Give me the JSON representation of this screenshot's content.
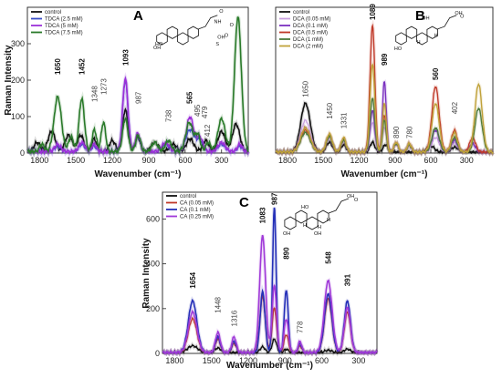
{
  "chart_data": [
    {
      "type": "line",
      "panel": "A",
      "ylabel": "Raman Intensity",
      "xlabel": "Wavenumber (cm⁻¹)",
      "xlim": [
        1900,
        80
      ],
      "x_reversed": true,
      "ylim": [
        0,
        400
      ],
      "yticks": [
        0,
        100,
        200,
        300
      ],
      "xticks": [
        1800,
        1500,
        1200,
        900,
        600,
        300
      ],
      "legend_position": "top-left",
      "grid": false,
      "structure_labels": [
        "OH",
        "HO",
        "NH",
        "OH",
        "O",
        "O",
        "S",
        "O"
      ],
      "peak_labels": [
        {
          "text": "1650",
          "x": 1650,
          "y": 215,
          "bold": true
        },
        {
          "text": "1452",
          "x": 1452,
          "y": 215,
          "bold": true
        },
        {
          "text": "1348",
          "x": 1348,
          "y": 140,
          "bold": false
        },
        {
          "text": "1273",
          "x": 1273,
          "y": 160,
          "bold": false
        },
        {
          "text": "1093",
          "x": 1093,
          "y": 240,
          "bold": true
        },
        {
          "text": "987",
          "x": 987,
          "y": 135,
          "bold": false
        },
        {
          "text": "738",
          "x": 738,
          "y": 85,
          "bold": false
        },
        {
          "text": "565",
          "x": 565,
          "y": 135,
          "bold": true
        },
        {
          "text": "495",
          "x": 500,
          "y": 100,
          "bold": false
        },
        {
          "text": "479",
          "x": 440,
          "y": 95,
          "bold": false
        },
        {
          "text": "412",
          "x": 420,
          "y": 45,
          "bold": false
        }
      ],
      "series": [
        {
          "name": "control",
          "color": "#111111",
          "width": 1.6,
          "peaks": [
            [
              1820,
              25,
              25
            ],
            [
              1700,
              55,
              30
            ],
            [
              1560,
              45,
              30
            ],
            [
              1460,
              45,
              25
            ],
            [
              1350,
              35,
              20
            ],
            [
              1200,
              30,
              25
            ],
            [
              1093,
              115,
              22
            ],
            [
              990,
              40,
              20
            ],
            [
              850,
              25,
              30
            ],
            [
              700,
              20,
              30
            ],
            [
              560,
              35,
              30
            ],
            [
              430,
              30,
              25
            ],
            [
              300,
              55,
              30
            ],
            [
              180,
              75,
              30
            ]
          ]
        },
        {
          "name": "TDCA (2.5 mM)",
          "color": "#3a4fc8",
          "width": 1.4,
          "peaks": [
            [
              1650,
              15,
              25
            ],
            [
              1450,
              20,
              25
            ],
            [
              1350,
              15,
              20
            ],
            [
              1093,
              195,
              22
            ],
            [
              990,
              45,
              20
            ],
            [
              760,
              20,
              30
            ],
            [
              560,
              60,
              35
            ],
            [
              480,
              30,
              25
            ],
            [
              300,
              20,
              30
            ],
            [
              150,
              15,
              20
            ]
          ]
        },
        {
          "name": "TDCA (5 mM)",
          "color": "#9b30d8",
          "width": 1.6,
          "peaks": [
            [
              1650,
              20,
              25
            ],
            [
              1450,
              25,
              25
            ],
            [
              1350,
              20,
              20
            ],
            [
              1093,
              200,
              22
            ],
            [
              990,
              50,
              20
            ],
            [
              760,
              25,
              30
            ],
            [
              560,
              95,
              30
            ],
            [
              480,
              40,
              25
            ],
            [
              300,
              25,
              30
            ],
            [
              150,
              20,
              20
            ]
          ]
        },
        {
          "name": "TDCA (7.5 mM)",
          "color": "#2a7a2a",
          "width": 1.6,
          "peaks": [
            [
              1780,
              20,
              20
            ],
            [
              1650,
              150,
              30
            ],
            [
              1540,
              40,
              20
            ],
            [
              1452,
              145,
              22
            ],
            [
              1348,
              60,
              18
            ],
            [
              1273,
              80,
              18
            ],
            [
              1093,
              90,
              22
            ],
            [
              987,
              45,
              20
            ],
            [
              850,
              25,
              25
            ],
            [
              738,
              30,
              25
            ],
            [
              565,
              80,
              30
            ],
            [
              495,
              45,
              20
            ],
            [
              410,
              25,
              20
            ],
            [
              300,
              90,
              30
            ],
            [
              165,
              370,
              28
            ]
          ]
        }
      ]
    },
    {
      "type": "line",
      "panel": "B",
      "ylabel": "",
      "xlabel": "Wavenumber (cm⁻¹)",
      "xlim": [
        1900,
        80
      ],
      "x_reversed": true,
      "ylim": [
        0,
        600
      ],
      "yticks": [],
      "xticks": [
        1800,
        1500,
        1200,
        900,
        600,
        300
      ],
      "legend_position": "top-left",
      "grid": false,
      "structure_labels": [
        "OH",
        "HO",
        "H",
        "H",
        "OH",
        "O"
      ],
      "peak_labels": [
        {
          "text": "1650",
          "x": 1650,
          "y": 230,
          "bold": false
        },
        {
          "text": "1450",
          "x": 1450,
          "y": 140,
          "bold": false
        },
        {
          "text": "1331",
          "x": 1331,
          "y": 100,
          "bold": false
        },
        {
          "text": "1089",
          "x": 1089,
          "y": 560,
          "bold": true
        },
        {
          "text": "989",
          "x": 989,
          "y": 360,
          "bold": true
        },
        {
          "text": "890",
          "x": 890,
          "y": 60,
          "bold": false
        },
        {
          "text": "780",
          "x": 780,
          "y": 60,
          "bold": false
        },
        {
          "text": "560",
          "x": 560,
          "y": 300,
          "bold": true
        },
        {
          "text": "402",
          "x": 402,
          "y": 160,
          "bold": false
        }
      ],
      "series": [
        {
          "name": "control",
          "color": "#111111",
          "width": 1.6,
          "peaks": [
            [
              1650,
              200,
              40
            ],
            [
              1450,
              40,
              25
            ],
            [
              1330,
              30,
              20
            ],
            [
              1089,
              40,
              20
            ],
            [
              980,
              30,
              20
            ],
            [
              600,
              25,
              30
            ],
            [
              400,
              20,
              30
            ]
          ]
        },
        {
          "name": "DCA (0.05 mM)",
          "color": "#c9a0e0",
          "width": 1.2,
          "peaks": [
            [
              1650,
              130,
              40
            ],
            [
              1450,
              60,
              25
            ],
            [
              1331,
              45,
              20
            ],
            [
              1089,
              120,
              20
            ],
            [
              989,
              100,
              18
            ],
            [
              890,
              30,
              18
            ],
            [
              780,
              25,
              18
            ],
            [
              560,
              60,
              30
            ],
            [
              402,
              40,
              25
            ],
            [
              250,
              30,
              25
            ]
          ]
        },
        {
          "name": "DCA (0.1 mM)",
          "color": "#7a30c0",
          "width": 1.4,
          "peaks": [
            [
              1650,
              100,
              40
            ],
            [
              1450,
              65,
              25
            ],
            [
              1331,
              50,
              20
            ],
            [
              1089,
              170,
              20
            ],
            [
              989,
              290,
              16
            ],
            [
              890,
              35,
              18
            ],
            [
              780,
              30,
              18
            ],
            [
              560,
              90,
              30
            ],
            [
              402,
              50,
              25
            ],
            [
              250,
              35,
              25
            ]
          ]
        },
        {
          "name": "DCA (0.5 mM)",
          "color": "#c03a2a",
          "width": 1.4,
          "peaks": [
            [
              1650,
              90,
              40
            ],
            [
              1450,
              70,
              25
            ],
            [
              1331,
              55,
              20
            ],
            [
              1089,
              520,
              20
            ],
            [
              989,
              150,
              16
            ],
            [
              890,
              40,
              18
            ],
            [
              780,
              35,
              18
            ],
            [
              560,
              270,
              30
            ],
            [
              402,
              90,
              25
            ],
            [
              250,
              60,
              25
            ]
          ]
        },
        {
          "name": "DCA (1 mM)",
          "color": "#4a7a3a",
          "width": 1.4,
          "peaks": [
            [
              1650,
              80,
              40
            ],
            [
              1450,
              65,
              25
            ],
            [
              1331,
              50,
              20
            ],
            [
              1089,
              220,
              20
            ],
            [
              989,
              130,
              16
            ],
            [
              890,
              35,
              18
            ],
            [
              780,
              30,
              18
            ],
            [
              560,
              100,
              30
            ],
            [
              402,
              60,
              25
            ],
            [
              200,
              180,
              30
            ]
          ]
        },
        {
          "name": "DCA (2 mM)",
          "color": "#c0a23a",
          "width": 1.4,
          "peaks": [
            [
              1650,
              100,
              40
            ],
            [
              1450,
              75,
              25
            ],
            [
              1331,
              60,
              20
            ],
            [
              1089,
              360,
              20
            ],
            [
              989,
              200,
              16
            ],
            [
              890,
              40,
              18
            ],
            [
              780,
              35,
              18
            ],
            [
              560,
              200,
              30
            ],
            [
              402,
              80,
              25
            ],
            [
              200,
              280,
              30
            ]
          ]
        }
      ]
    },
    {
      "type": "line",
      "panel": "C",
      "ylabel": "Raman Intensity",
      "xlabel": "Wavenumber (cm⁻¹)",
      "xlim": [
        1900,
        150
      ],
      "x_reversed": true,
      "ylim": [
        0,
        720
      ],
      "yticks": [
        0,
        200,
        400,
        600
      ],
      "xticks": [
        1800,
        1500,
        1200,
        900,
        600,
        300
      ],
      "legend_position": "top-left",
      "grid": false,
      "structure_labels": [
        "OH",
        "HO",
        "OH",
        "H",
        "H",
        "H",
        "OH",
        "O"
      ],
      "peak_labels": [
        {
          "text": "1654",
          "x": 1654,
          "y": 290,
          "bold": true
        },
        {
          "text": "1448",
          "x": 1448,
          "y": 180,
          "bold": false
        },
        {
          "text": "1316",
          "x": 1316,
          "y": 120,
          "bold": false
        },
        {
          "text": "1083",
          "x": 1083,
          "y": 580,
          "bold": true
        },
        {
          "text": "987",
          "x": 987,
          "y": 680,
          "bold": true
        },
        {
          "text": "890",
          "x": 890,
          "y": 420,
          "bold": true
        },
        {
          "text": "778",
          "x": 778,
          "y": 90,
          "bold": false
        },
        {
          "text": "548",
          "x": 548,
          "y": 400,
          "bold": true
        },
        {
          "text": "391",
          "x": 391,
          "y": 300,
          "bold": true
        }
      ],
      "series": [
        {
          "name": "control",
          "color": "#111111",
          "width": 1.4,
          "peaks": [
            [
              1654,
              30,
              40
            ],
            [
              1448,
              20,
              25
            ],
            [
              1083,
              25,
              20
            ],
            [
              987,
              60,
              18
            ],
            [
              890,
              15,
              18
            ],
            [
              548,
              10,
              30
            ],
            [
              391,
              15,
              25
            ]
          ]
        },
        {
          "name": "CA (0.05 mM)",
          "color": "#c03a2a",
          "width": 1.4,
          "peaks": [
            [
              1654,
              150,
              35
            ],
            [
              1448,
              60,
              20
            ],
            [
              1316,
              40,
              18
            ],
            [
              1083,
              250,
              22
            ],
            [
              987,
              200,
              18
            ],
            [
              890,
              80,
              18
            ],
            [
              778,
              30,
              15
            ],
            [
              548,
              240,
              30
            ],
            [
              391,
              180,
              25
            ]
          ]
        },
        {
          "name": "CA (0.1 mM)",
          "color": "#2530b8",
          "width": 1.6,
          "peaks": [
            [
              1654,
              230,
              35
            ],
            [
              1448,
              70,
              20
            ],
            [
              1316,
              50,
              18
            ],
            [
              1083,
              270,
              20
            ],
            [
              987,
              650,
              14
            ],
            [
              890,
              280,
              16
            ],
            [
              778,
              40,
              15
            ],
            [
              548,
              260,
              30
            ],
            [
              391,
              230,
              25
            ]
          ]
        },
        {
          "name": "CA (0.25 mM)",
          "color": "#a03ad8",
          "width": 1.6,
          "peaks": [
            [
              1654,
              180,
              35
            ],
            [
              1448,
              90,
              20
            ],
            [
              1316,
              70,
              18
            ],
            [
              1083,
              520,
              24
            ],
            [
              987,
              300,
              18
            ],
            [
              890,
              150,
              18
            ],
            [
              778,
              50,
              15
            ],
            [
              548,
              320,
              32
            ],
            [
              391,
              200,
              25
            ]
          ]
        }
      ]
    }
  ],
  "panels": [
    {
      "letter": "A"
    },
    {
      "letter": "B"
    },
    {
      "letter": "C"
    }
  ]
}
